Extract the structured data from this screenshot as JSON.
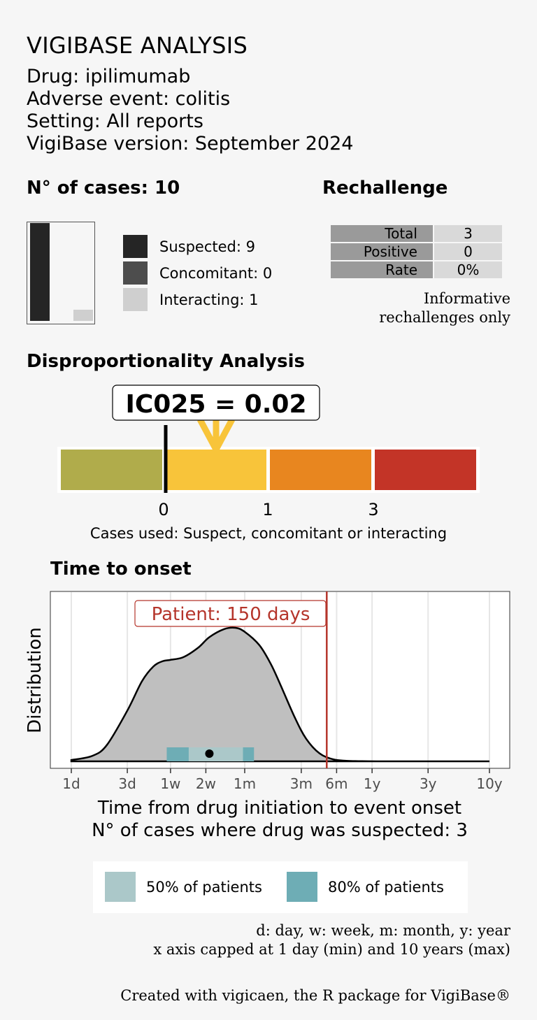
{
  "header": {
    "title": "VIGIBASE ANALYSIS",
    "drug": "Drug: ipilimumab",
    "event": "Adverse event: colitis",
    "setting": "Setting: All reports",
    "version": "VigiBase version: September 2024"
  },
  "cases": {
    "title": "N° of cases: 10",
    "legend": [
      {
        "label": "Suspected: 9",
        "value": 9,
        "color": "#252525"
      },
      {
        "label": "Concomitant: 0",
        "value": 0,
        "color": "#4d4d4d"
      },
      {
        "label": "Interacting: 1",
        "value": 1,
        "color": "#cfcfcf"
      }
    ]
  },
  "rechallenge": {
    "title": "Rechallenge",
    "rows": [
      {
        "label": "Total",
        "value": "3"
      },
      {
        "label": "Positive",
        "value": "0"
      },
      {
        "label": "Rate",
        "value": "0%"
      }
    ],
    "note_line1": "Informative",
    "note_line2": "rechallenges only"
  },
  "disproportionality": {
    "title": "Disproportionality Analysis",
    "ic_label": "IC025 = 0.02",
    "ic025": 0.02,
    "ticks": [
      "0",
      "1",
      "3"
    ],
    "caption": "Cases used: Suspect, concomitant or interacting",
    "colors": [
      "#b0ac4b",
      "#f8c43a",
      "#e8861f",
      "#c33427"
    ]
  },
  "tto": {
    "title": "Time to onset",
    "ylabel": "Distribution",
    "xlabel": "Time from drug initiation to event onset",
    "subtitle": "N° of cases where drug was suspected: 3",
    "patient_label": "Patient: 150 days",
    "legend": [
      {
        "label": "50% of patients",
        "color": "#abc8c9"
      },
      {
        "label": "80% of patients",
        "color": "#6eadb5"
      }
    ],
    "note_line1": "d: day, w: week, m: month, y: year",
    "note_line2": "x axis capped at 1 day (min) and 10 years (max)"
  },
  "chart_data": [
    {
      "type": "bar",
      "title": "N° of cases: 10",
      "categories": [
        "Suspected",
        "Concomitant",
        "Interacting"
      ],
      "values": [
        9,
        0,
        1
      ]
    },
    {
      "type": "area",
      "title": "Time to onset",
      "xlabel": "Time from drug initiation to event onset",
      "ylabel": "Distribution",
      "x_scale": "log",
      "x_unit": "days",
      "x_ticks": [
        {
          "label": "1d",
          "days": 1
        },
        {
          "label": "3d",
          "days": 3
        },
        {
          "label": "1w",
          "days": 7
        },
        {
          "label": "2w",
          "days": 14
        },
        {
          "label": "1m",
          "days": 30
        },
        {
          "label": "3m",
          "days": 91
        },
        {
          "label": "6m",
          "days": 182
        },
        {
          "label": "1y",
          "days": 365
        },
        {
          "label": "3y",
          "days": 1095
        },
        {
          "label": "10y",
          "days": 3650
        }
      ],
      "density": {
        "x_days": [
          1,
          1.5,
          2,
          3,
          4,
          5,
          6,
          7,
          9,
          12,
          15,
          20,
          25,
          30,
          40,
          50,
          60,
          80,
          100,
          130,
          170,
          220,
          300,
          400,
          600,
          1000,
          3650
        ],
        "y": [
          0.01,
          0.04,
          0.12,
          0.38,
          0.6,
          0.71,
          0.75,
          0.76,
          0.78,
          0.85,
          0.93,
          0.99,
          1.0,
          0.97,
          0.87,
          0.73,
          0.58,
          0.33,
          0.17,
          0.06,
          0.015,
          0.004,
          0.001,
          0,
          0,
          0,
          0
        ]
      },
      "range_80_days": [
        6.5,
        36
      ],
      "range_50_days": [
        10,
        29
      ],
      "median_days": 15,
      "patient_days": 150
    }
  ]
}
